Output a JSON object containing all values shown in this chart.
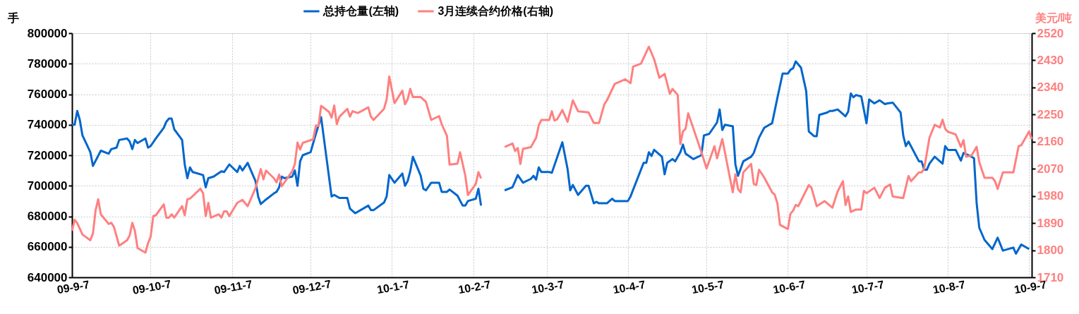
{
  "chart_data": {
    "type": "line",
    "ylabel": "手",
    "y2label": "美元/吨",
    "legend": "top",
    "grid": true,
    "xlim": [
      "2009-09-07",
      "2010-09-08"
    ],
    "xticks": [
      {
        "value": "2009-09-07",
        "label": "09-9-7"
      },
      {
        "value": "2009-10-07",
        "label": "09-10-7"
      },
      {
        "value": "2009-11-07",
        "label": "09-11-7"
      },
      {
        "value": "2009-12-07",
        "label": "09-12-7"
      },
      {
        "value": "2010-01-07",
        "label": "10-1-7"
      },
      {
        "value": "2010-02-07",
        "label": "10-2-7"
      },
      {
        "value": "2010-03-07",
        "label": "10-3-7"
      },
      {
        "value": "2010-04-07",
        "label": "10-4-7"
      },
      {
        "value": "2010-05-07",
        "label": "10-5-7"
      },
      {
        "value": "2010-06-07",
        "label": "10-6-7"
      },
      {
        "value": "2010-07-07",
        "label": "10-7-7"
      },
      {
        "value": "2010-08-07",
        "label": "10-8-7"
      },
      {
        "value": "2010-09-07",
        "label": "10-9-7"
      }
    ],
    "ylim": [
      640000,
      800000
    ],
    "yticks": [
      640000,
      660000,
      680000,
      700000,
      720000,
      740000,
      760000,
      780000,
      800000
    ],
    "y2lim": [
      1710,
      2520
    ],
    "y2ticks": [
      1710,
      1800,
      1890,
      1980,
      2070,
      2160,
      2250,
      2340,
      2430,
      2520
    ],
    "series": [
      {
        "name": "总持仓量(左轴)",
        "color": "#0066cc",
        "axis": "y",
        "x": [
          "2009-09-07",
          "2009-09-08",
          "2009-09-09",
          "2009-09-10",
          "2009-09-11",
          "2009-09-14",
          "2009-09-15",
          "2009-09-18",
          "2009-09-21",
          "2009-09-22",
          "2009-09-24",
          "2009-09-25",
          "2009-09-28",
          "2009-09-29",
          "2009-09-30",
          "2009-10-01",
          "2009-10-02",
          "2009-10-05",
          "2009-10-06",
          "2009-10-07",
          "2009-10-09",
          "2009-10-12",
          "2009-10-13",
          "2009-10-14",
          "2009-10-15",
          "2009-10-16",
          "2009-10-19",
          "2009-10-20",
          "2009-10-21",
          "2009-10-22",
          "2009-10-23",
          "2009-10-27",
          "2009-10-28",
          "2009-10-29",
          "2009-10-31",
          "2009-11-03",
          "2009-11-04",
          "2009-11-06",
          "2009-11-09",
          "2009-11-10",
          "2009-11-11",
          "2009-11-13",
          "2009-11-16",
          "2009-11-17",
          "2009-11-18",
          "2009-11-20",
          "2009-11-23",
          "2009-11-24",
          "2009-11-25",
          "2009-11-26",
          "2009-11-27",
          "2009-11-30",
          "2009-12-01",
          "2009-12-02",
          "2009-12-03",
          "2009-12-04",
          "2009-12-07",
          "2009-12-09",
          "2009-12-11",
          "2009-12-13",
          "2009-12-15",
          "2009-12-16",
          "2009-12-18",
          "2009-12-21",
          "2009-12-22",
          "2009-12-24",
          "2009-12-29",
          "2009-12-30",
          "2009-12-31",
          "2010-01-04",
          "2010-01-05",
          "2010-01-06",
          "2010-01-08",
          "2010-01-11",
          "2010-01-12",
          "2010-01-13",
          "2010-01-14",
          "2010-01-15",
          "2010-01-18",
          "2010-01-19",
          "2010-01-20",
          "2010-01-22",
          "2010-01-25",
          "2010-01-26",
          "2010-01-28",
          "2010-01-29",
          "2010-02-01",
          "2010-02-03",
          "2010-02-04",
          "2010-02-05",
          "2010-02-08",
          "2010-02-09",
          "2010-02-10",
          "2010-02-14",
          "2010-02-19",
          "2010-02-22",
          "2010-02-24",
          "2010-02-26",
          "2010-03-01",
          "2010-03-02",
          "2010-03-03",
          "2010-03-04",
          "2010-03-05",
          "2010-03-08",
          "2010-03-09",
          "2010-03-11",
          "2010-03-13",
          "2010-03-15",
          "2010-03-16",
          "2010-03-17",
          "2010-03-19",
          "2010-03-22",
          "2010-03-23",
          "2010-03-25",
          "2010-03-26",
          "2010-03-27",
          "2010-03-30",
          "2010-04-01",
          "2010-04-02",
          "2010-04-07",
          "2010-04-08",
          "2010-04-13",
          "2010-04-14",
          "2010-04-15",
          "2010-04-16",
          "2010-04-17",
          "2010-04-20",
          "2010-04-21",
          "2010-04-22",
          "2010-04-24",
          "2010-04-25",
          "2010-04-27",
          "2010-04-28",
          "2010-04-29",
          "2010-05-02",
          "2010-05-05",
          "2010-05-06",
          "2010-05-08",
          "2010-05-11",
          "2010-05-12",
          "2010-05-13",
          "2010-05-14",
          "2010-05-17",
          "2010-05-18",
          "2010-05-19",
          "2010-05-21",
          "2010-05-24",
          "2010-05-25",
          "2010-05-27",
          "2010-05-29",
          "2010-06-01",
          "2010-06-03",
          "2010-06-05",
          "2010-06-07",
          "2010-06-08",
          "2010-06-09",
          "2010-06-10",
          "2010-06-12",
          "2010-06-14",
          "2010-06-15",
          "2010-06-17",
          "2010-06-18",
          "2010-06-19",
          "2010-06-22",
          "2010-06-23",
          "2010-06-24",
          "2010-06-26",
          "2010-06-29",
          "2010-06-30",
          "2010-07-01",
          "2010-07-02",
          "2010-07-03",
          "2010-07-05",
          "2010-07-07",
          "2010-07-08",
          "2010-07-10",
          "2010-07-12",
          "2010-07-14",
          "2010-07-15",
          "2010-07-17",
          "2010-07-20",
          "2010-07-21",
          "2010-07-22",
          "2010-07-23",
          "2010-07-27",
          "2010-07-28",
          "2010-07-29",
          "2010-07-30",
          "2010-07-31",
          "2010-08-02",
          "2010-08-05",
          "2010-08-06",
          "2010-08-07",
          "2010-08-10",
          "2010-08-12",
          "2010-08-13",
          "2010-08-15",
          "2010-08-17",
          "2010-08-18",
          "2010-08-19",
          "2010-08-21",
          "2010-08-24",
          "2010-08-26",
          "2010-08-28",
          "2010-09-01",
          "2010-09-02",
          "2010-09-04",
          "2010-09-07"
        ],
        "values": [
          740000,
          740000,
          749000,
          743000,
          733000,
          722000,
          713000,
          723000,
          721000,
          724000,
          725000,
          730000,
          731000,
          729000,
          724000,
          730000,
          728000,
          731000,
          725000,
          726000,
          731000,
          738000,
          742000,
          744000,
          744000,
          737000,
          730000,
          714000,
          705000,
          712000,
          709000,
          707000,
          699000,
          705000,
          706000,
          709500,
          709000,
          714000,
          709000,
          713000,
          710000,
          715000,
          703000,
          693000,
          688000,
          691000,
          695000,
          696000,
          699000,
          706000,
          705000,
          706000,
          710000,
          700000,
          716000,
          720000,
          722000,
          734000,
          745000,
          719000,
          693000,
          694000,
          692000,
          692000,
          685000,
          682000,
          687000,
          684000,
          684000,
          689000,
          693000,
          707000,
          702000,
          708000,
          700000,
          703000,
          709500,
          719000,
          706500,
          698000,
          697000,
          702000,
          702000,
          696000,
          696000,
          697500,
          693500,
          687000,
          687000,
          690000,
          691500,
          698000,
          687000,
          null,
          697000,
          699000,
          707000,
          702000,
          704500,
          706500,
          704000,
          712000,
          709000,
          709000,
          708500,
          718500,
          728500,
          711000,
          697000,
          700500,
          694000,
          700000,
          700000,
          688500,
          689500,
          688500,
          688500,
          691500,
          690000,
          690000,
          693000,
          715000,
          715000,
          722000,
          719500,
          723500,
          719000,
          707500,
          715000,
          717500,
          716000,
          722000,
          727000,
          721000,
          717500,
          720000,
          733000,
          734000,
          741500,
          750000,
          736500,
          740000,
          739000,
          714000,
          706500,
          716000,
          719000,
          721500,
          731500,
          738000,
          741000,
          757500,
          773500,
          773500,
          776000,
          777000,
          781500,
          777500,
          762000,
          735500,
          732500,
          732500,
          746500,
          748000,
          749000,
          749000,
          750000,
          745500,
          748500,
          760500,
          758000,
          759500,
          758500,
          741000,
          756500,
          754000,
          756000,
          753500,
          754000,
          754500,
          748000,
          733000,
          726000,
          729000,
          716000,
          716000,
          710500,
          710500,
          714500,
          719000,
          714500,
          726000,
          723500,
          723500,
          716500,
          721500,
          720000,
          718000,
          688500,
          672500,
          664500,
          658500,
          666000,
          657500,
          659500,
          655500,
          661500,
          658500
        ]
      },
      {
        "name": "3月连续合约价格(右轴)",
        "color": "#ff8080",
        "axis": "y2",
        "x": [
          "2009-09-07",
          "2009-09-08",
          "2009-09-09",
          "2009-09-11",
          "2009-09-14",
          "2009-09-15",
          "2009-09-16",
          "2009-09-17",
          "2009-09-18",
          "2009-09-21",
          "2009-09-22",
          "2009-09-23",
          "2009-09-24",
          "2009-09-25",
          "2009-09-28",
          "2009-09-29",
          "2009-09-30",
          "2009-10-01",
          "2009-10-02",
          "2009-10-05",
          "2009-10-06",
          "2009-10-07",
          "2009-10-08",
          "2009-10-09",
          "2009-10-12",
          "2009-10-13",
          "2009-10-14",
          "2009-10-15",
          "2009-10-16",
          "2009-10-19",
          "2009-10-20",
          "2009-10-21",
          "2009-10-22",
          "2009-10-26",
          "2009-10-27",
          "2009-10-28",
          "2009-10-29",
          "2009-10-30",
          "2009-11-02",
          "2009-11-03",
          "2009-11-04",
          "2009-11-05",
          "2009-11-06",
          "2009-11-09",
          "2009-11-11",
          "2009-11-13",
          "2009-11-16",
          "2009-11-18",
          "2009-11-19",
          "2009-11-20",
          "2009-11-23",
          "2009-11-24",
          "2009-11-25",
          "2009-11-26",
          "2009-11-30",
          "2009-12-01",
          "2009-12-02",
          "2009-12-03",
          "2009-12-04",
          "2009-12-08",
          "2009-12-09",
          "2009-12-10",
          "2009-12-11",
          "2009-12-14",
          "2009-12-15",
          "2009-12-16",
          "2009-12-17",
          "2009-12-18",
          "2009-12-21",
          "2009-12-22",
          "2009-12-23",
          "2009-12-25",
          "2009-12-29",
          "2009-12-30",
          "2009-12-31",
          "2010-01-04",
          "2010-01-05",
          "2010-01-06",
          "2010-01-08",
          "2010-01-11",
          "2010-01-12",
          "2010-01-13",
          "2010-01-14",
          "2010-01-15",
          "2010-01-18",
          "2010-01-20",
          "2010-01-22",
          "2010-01-25",
          "2010-01-26",
          "2010-01-28",
          "2010-01-29",
          "2010-02-01",
          "2010-02-02",
          "2010-02-03",
          "2010-02-04",
          "2010-02-05",
          "2010-02-08",
          "2010-02-09",
          "2010-02-10",
          "2010-02-14",
          "2010-02-19",
          "2010-02-22",
          "2010-02-23",
          "2010-02-24",
          "2010-02-25",
          "2010-02-26",
          "2010-03-01",
          "2010-03-03",
          "2010-03-04",
          "2010-03-05",
          "2010-03-08",
          "2010-03-09",
          "2010-03-10",
          "2010-03-11",
          "2010-03-13",
          "2010-03-15",
          "2010-03-17",
          "2010-03-19",
          "2010-03-23",
          "2010-03-25",
          "2010-03-27",
          "2010-03-29",
          "2010-03-30",
          "2010-04-02",
          "2010-04-06",
          "2010-04-08",
          "2010-04-09",
          "2010-04-12",
          "2010-04-15",
          "2010-04-17",
          "2010-04-19",
          "2010-04-21",
          "2010-04-23",
          "2010-04-24",
          "2010-04-26",
          "2010-04-27",
          "2010-04-28",
          "2010-04-29",
          "2010-04-30",
          "2010-05-05",
          "2010-05-07",
          "2010-05-10",
          "2010-05-11",
          "2010-05-13",
          "2010-05-17",
          "2010-05-18",
          "2010-05-19",
          "2010-05-20",
          "2010-05-21",
          "2010-05-24",
          "2010-05-25",
          "2010-05-26",
          "2010-05-27",
          "2010-05-29",
          "2010-06-01",
          "2010-06-02",
          "2010-06-03",
          "2010-06-04",
          "2010-06-07",
          "2010-06-08",
          "2010-06-09",
          "2010-06-10",
          "2010-06-11",
          "2010-06-15",
          "2010-06-16",
          "2010-06-18",
          "2010-06-21",
          "2010-06-24",
          "2010-06-26",
          "2010-06-28",
          "2010-06-29",
          "2010-06-30",
          "2010-07-01",
          "2010-07-03",
          "2010-07-05",
          "2010-07-06",
          "2010-07-07",
          "2010-07-10",
          "2010-07-12",
          "2010-07-14",
          "2010-07-16",
          "2010-07-17",
          "2010-07-21",
          "2010-07-23",
          "2010-07-24",
          "2010-07-27",
          "2010-07-28",
          "2010-07-29",
          "2010-07-31",
          "2010-08-02",
          "2010-08-04",
          "2010-08-05",
          "2010-08-06",
          "2010-08-07",
          "2010-08-10",
          "2010-08-12",
          "2010-08-13",
          "2010-08-14",
          "2010-08-16",
          "2010-08-18",
          "2010-08-19",
          "2010-08-21",
          "2010-08-24",
          "2010-08-25",
          "2010-08-26",
          "2010-08-28",
          "2010-09-01",
          "2010-09-03",
          "2010-09-04",
          "2010-09-07",
          "2010-09-08"
        ],
        "values": [
          1864,
          1901,
          1890,
          1852,
          1833,
          1856,
          1932,
          1969,
          1919,
          1887,
          1891,
          1877,
          1846,
          1815,
          1833,
          1849,
          1891,
          1864,
          1807,
          1792,
          1823,
          1845,
          1913,
          1916,
          1952,
          1908,
          1908,
          1919,
          1908,
          1946,
          1916,
          1969,
          1971,
          2004,
          1989,
          1913,
          1957,
          1908,
          1919,
          1908,
          1929,
          1929,
          1913,
          1957,
          1967,
          1946,
          2006,
          2069,
          2035,
          2064,
          2039,
          2025,
          2051,
          2012,
          2062,
          2086,
          2157,
          2134,
          2156,
          2168,
          2214,
          2212,
          2279,
          2259,
          2240,
          2280,
          2218,
          2243,
          2269,
          2243,
          2261,
          2255,
          2274,
          2243,
          2232,
          2269,
          2300,
          2376,
          2288,
          2329,
          2284,
          2300,
          2335,
          2308,
          2308,
          2292,
          2232,
          2245,
          2218,
          2179,
          2084,
          2087,
          2125,
          2086,
          2047,
          1983,
          2020,
          2059,
          2038,
          null,
          2142,
          2154,
          2129,
          2139,
          2086,
          2136,
          2142,
          2173,
          2214,
          2232,
          2232,
          2261,
          2230,
          2234,
          2265,
          2226,
          2297,
          2261,
          2257,
          2222,
          2222,
          2284,
          2297,
          2352,
          2367,
          2354,
          2409,
          2419,
          2475,
          2434,
          2372,
          2385,
          2319,
          2335,
          2315,
          2152,
          2194,
          2203,
          2254,
          2126,
          2071,
          2145,
          2105,
          2169,
          1992,
          2052,
          2003,
          1992,
          2058,
          2086,
          2020,
          2016,
          2067,
          2041,
          1992,
          1984,
          1956,
          1884,
          1870,
          1921,
          1931,
          1950,
          1946,
          2016,
          2007,
          1946,
          1963,
          1941,
          1995,
          2029,
          1950,
          1978,
          1927,
          1935,
          1935,
          1997,
          1989,
          2007,
          1973,
          2007,
          2018,
          1978,
          1973,
          2046,
          2029,
          2058,
          2058,
          2071,
          2173,
          2216,
          2207,
          2233,
          2203,
          2193,
          2184,
          2143,
          2165,
          2110,
          2114,
          2143,
          2092,
          2040,
          2040,
          2029,
          2003,
          2058,
          2058,
          2145,
          2148,
          2194,
          2169
        ]
      }
    ]
  }
}
